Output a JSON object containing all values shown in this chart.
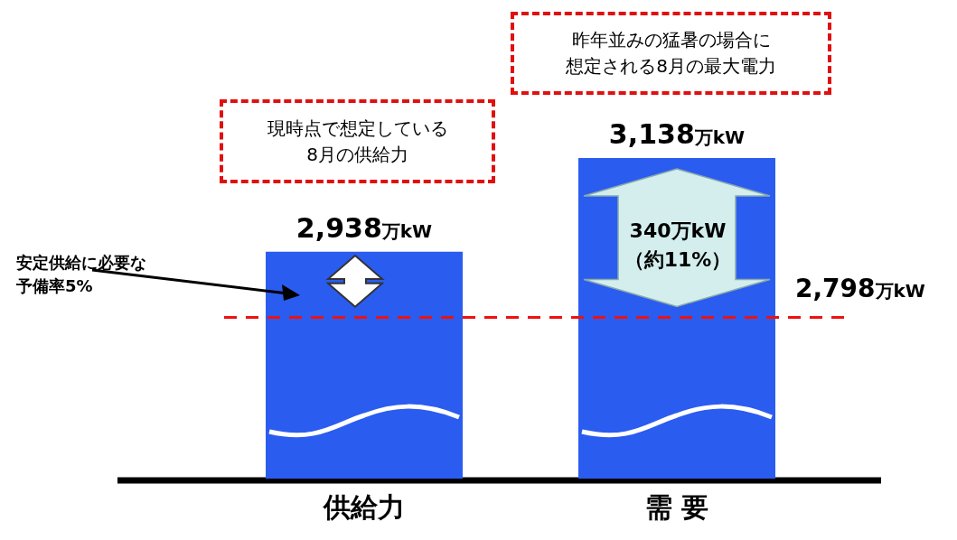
{
  "chart_data": {
    "type": "bar",
    "categories": [
      "供給力",
      "需 要"
    ],
    "values": [
      2938,
      3138
    ],
    "color": "#2b5cf0",
    "value_labels": [
      "2,938万kW",
      "3,138万kW"
    ],
    "tick_labels": "x",
    "grid": false,
    "legend": false,
    "ref_lines": [
      {
        "axis": "y",
        "value": 2798,
        "label": "2,798万kW",
        "color": "#ee1111",
        "line_style": "dashed"
      }
    ],
    "annotations": [
      "現時点で想定している8月の供給力",
      "昨年並みの猛暑の場合に想定される8月の最大電力",
      "安定供給に必要な予備率5%",
      "340万kW（約11%）"
    ]
  }
}
